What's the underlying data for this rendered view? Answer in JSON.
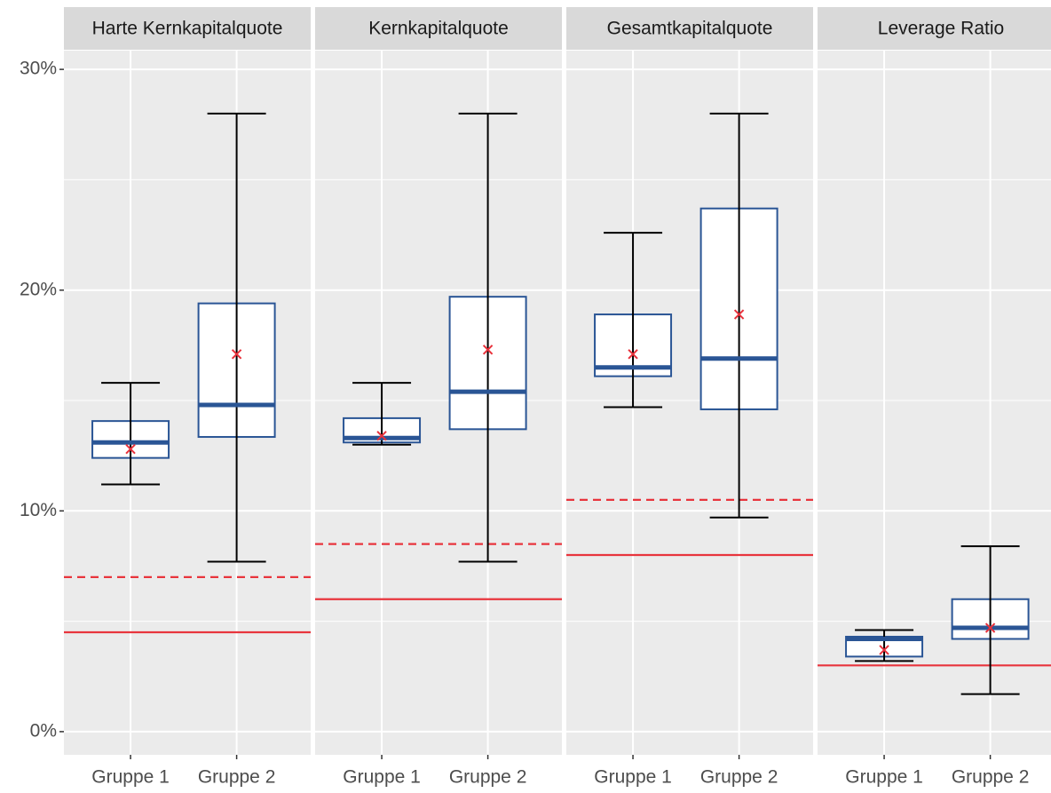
{
  "chart_data": [
    {
      "type": "box",
      "title": "Harte Kernkapitalquote",
      "categories": [
        "Gruppe 1",
        "Gruppe 2"
      ],
      "min": [
        11.2,
        7.7
      ],
      "q1": [
        12.4,
        13.35
      ],
      "median": [
        13.1,
        14.8
      ],
      "q3": [
        14.07,
        19.4
      ],
      "max": [
        15.8,
        28.0
      ],
      "mean": [
        12.8,
        17.1
      ],
      "hlines": [
        {
          "value": 4.5,
          "linestyle": "solid"
        },
        {
          "value": 7.0,
          "linestyle": "dashed"
        }
      ],
      "ylim": [
        -1.05,
        30.85
      ],
      "yticks": [
        {
          "value": 0,
          "label": "0%"
        },
        {
          "value": 10,
          "label": "10%"
        },
        {
          "value": 20,
          "label": "20%"
        },
        {
          "value": 30,
          "label": "30%"
        }
      ],
      "minor_yticks": [
        5,
        15,
        25
      ],
      "grid": true,
      "box_color": "#2a5595",
      "whisker_color": "#000000",
      "mean_color": "#e8303a",
      "refline_color": "#e8353d"
    },
    {
      "type": "box",
      "title": "Kernkapitalquote",
      "categories": [
        "Gruppe 1",
        "Gruppe 2"
      ],
      "min": [
        13.0,
        7.7
      ],
      "q1": [
        13.1,
        13.7
      ],
      "median": [
        13.3,
        15.4
      ],
      "q3": [
        14.2,
        19.7
      ],
      "max": [
        15.8,
        28.0
      ],
      "mean": [
        13.4,
        17.3
      ],
      "hlines": [
        {
          "value": 6.0,
          "linestyle": "solid"
        },
        {
          "value": 8.5,
          "linestyle": "dashed"
        }
      ],
      "ylim": [
        -1.05,
        30.85
      ],
      "grid": true,
      "box_color": "#2a5595",
      "whisker_color": "#000000",
      "mean_color": "#e8303a",
      "refline_color": "#e8353d"
    },
    {
      "type": "box",
      "title": "Gesamtkapitalquote",
      "categories": [
        "Gruppe 1",
        "Gruppe 2"
      ],
      "min": [
        14.7,
        9.7
      ],
      "q1": [
        16.1,
        14.6
      ],
      "median": [
        16.5,
        16.9
      ],
      "q3": [
        18.9,
        23.7
      ],
      "max": [
        22.6,
        28.0
      ],
      "mean": [
        17.1,
        18.9
      ],
      "hlines": [
        {
          "value": 8.0,
          "linestyle": "solid"
        },
        {
          "value": 10.5,
          "linestyle": "dashed"
        }
      ],
      "ylim": [
        -1.05,
        30.85
      ],
      "grid": true,
      "box_color": "#2a5595",
      "whisker_color": "#000000",
      "mean_color": "#e8303a",
      "refline_color": "#e8353d"
    },
    {
      "type": "box",
      "title": "Leverage Ratio",
      "categories": [
        "Gruppe 1",
        "Gruppe 2"
      ],
      "min": [
        3.2,
        1.7
      ],
      "q1": [
        3.4,
        4.2
      ],
      "median": [
        4.2,
        4.7
      ],
      "q3": [
        4.3,
        6.0
      ],
      "max": [
        4.6,
        8.4
      ],
      "mean": [
        3.7,
        4.7
      ],
      "hlines": [
        {
          "value": 3.0,
          "linestyle": "solid"
        }
      ],
      "ylim": [
        -1.05,
        30.85
      ],
      "grid": true,
      "box_color": "#2a5595",
      "whisker_color": "#000000",
      "mean_color": "#e8303a",
      "refline_color": "#e8353d"
    }
  ]
}
